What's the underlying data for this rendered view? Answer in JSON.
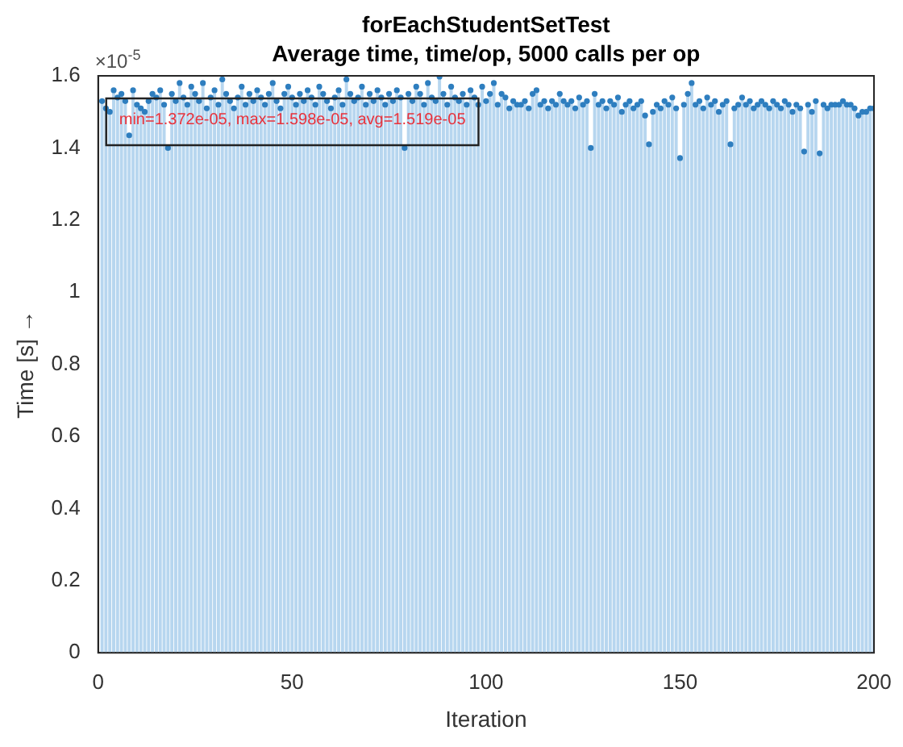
{
  "chart_data": {
    "type": "bar",
    "title": "forEachStudentSetTest",
    "subtitle": "Average time, time/op, 5000 calls per op",
    "xlabel": "Iteration",
    "ylabel": "Time [s] →",
    "annotations": [
      "×10$^{-5}$",
      "min=1.372e-05, max=1.598e-05, avg=1.519e-05"
    ],
    "x": [
      1,
      2,
      3,
      4,
      5,
      6,
      7,
      8,
      9,
      10,
      11,
      12,
      13,
      14,
      15,
      16,
      17,
      18,
      19,
      20,
      21,
      22,
      23,
      24,
      25,
      26,
      27,
      28,
      29,
      30,
      31,
      32,
      33,
      34,
      35,
      36,
      37,
      38,
      39,
      40,
      41,
      42,
      43,
      44,
      45,
      46,
      47,
      48,
      49,
      50,
      51,
      52,
      53,
      54,
      55,
      56,
      57,
      58,
      59,
      60,
      61,
      62,
      63,
      64,
      65,
      66,
      67,
      68,
      69,
      70,
      71,
      72,
      73,
      74,
      75,
      76,
      77,
      78,
      79,
      80,
      81,
      82,
      83,
      84,
      85,
      86,
      87,
      88,
      89,
      90,
      91,
      92,
      93,
      94,
      95,
      96,
      97,
      98,
      99,
      100,
      101,
      102,
      103,
      104,
      105,
      106,
      107,
      108,
      109,
      110,
      111,
      112,
      113,
      114,
      115,
      116,
      117,
      118,
      119,
      120,
      121,
      122,
      123,
      124,
      125,
      126,
      127,
      128,
      129,
      130,
      131,
      132,
      133,
      134,
      135,
      136,
      137,
      138,
      139,
      140,
      141,
      142,
      143,
      144,
      145,
      146,
      147,
      148,
      149,
      150,
      151,
      152,
      153,
      154,
      155,
      156,
      157,
      158,
      159,
      160,
      161,
      162,
      163,
      164,
      165,
      166,
      167,
      168,
      169,
      170,
      171,
      172,
      173,
      174,
      175,
      176,
      177,
      178,
      179,
      180,
      181,
      182,
      183,
      184,
      185,
      186,
      187,
      188,
      189,
      190,
      191,
      192,
      193,
      194,
      195,
      196,
      197,
      198,
      199,
      200
    ],
    "series": [
      {
        "color": "#b7d6ef",
        "values": [
          1.53,
          1.51,
          1.5,
          1.56,
          1.54,
          1.55,
          1.53,
          1.435,
          1.56,
          1.52,
          1.51,
          1.5,
          1.53,
          1.55,
          1.54,
          1.56,
          1.52,
          1.4,
          1.55,
          1.53,
          1.58,
          1.54,
          1.52,
          1.57,
          1.55,
          1.53,
          1.58,
          1.51,
          1.54,
          1.56,
          1.52,
          1.59,
          1.55,
          1.53,
          1.51,
          1.54,
          1.57,
          1.52,
          1.55,
          1.53,
          1.56,
          1.54,
          1.52,
          1.55,
          1.58,
          1.53,
          1.51,
          1.55,
          1.57,
          1.54,
          1.52,
          1.55,
          1.53,
          1.56,
          1.54,
          1.52,
          1.57,
          1.55,
          1.53,
          1.51,
          1.54,
          1.56,
          1.52,
          1.59,
          1.55,
          1.53,
          1.54,
          1.57,
          1.52,
          1.55,
          1.53,
          1.56,
          1.54,
          1.52,
          1.55,
          1.53,
          1.56,
          1.54,
          1.4,
          1.55,
          1.53,
          1.57,
          1.55,
          1.52,
          1.58,
          1.54,
          1.53,
          1.598,
          1.55,
          1.52,
          1.57,
          1.54,
          1.53,
          1.55,
          1.52,
          1.56,
          1.54,
          1.52,
          1.57,
          1.53,
          1.55,
          1.58,
          1.52,
          1.55,
          1.54,
          1.51,
          1.53,
          1.52,
          1.52,
          1.53,
          1.51,
          1.55,
          1.56,
          1.52,
          1.53,
          1.51,
          1.53,
          1.52,
          1.55,
          1.53,
          1.52,
          1.53,
          1.51,
          1.54,
          1.52,
          1.53,
          1.4,
          1.55,
          1.52,
          1.53,
          1.51,
          1.53,
          1.52,
          1.54,
          1.5,
          1.52,
          1.53,
          1.51,
          1.52,
          1.53,
          1.49,
          1.41,
          1.5,
          1.52,
          1.51,
          1.53,
          1.52,
          1.54,
          1.51,
          1.372,
          1.52,
          1.55,
          1.58,
          1.52,
          1.53,
          1.51,
          1.54,
          1.52,
          1.53,
          1.5,
          1.52,
          1.53,
          1.41,
          1.51,
          1.52,
          1.54,
          1.52,
          1.53,
          1.51,
          1.52,
          1.53,
          1.52,
          1.51,
          1.53,
          1.52,
          1.51,
          1.53,
          1.52,
          1.5,
          1.52,
          1.51,
          1.39,
          1.52,
          1.5,
          1.53,
          1.385,
          1.52,
          1.51,
          1.52,
          1.52,
          1.52,
          1.53,
          1.52,
          1.52,
          1.51,
          1.49,
          1.5,
          1.5,
          1.51,
          1.51
        ]
      },
      {
        "type": "scatter",
        "color": "#2e7ebf",
        "marker": "circle",
        "values": [
          1.53,
          1.51,
          1.5,
          1.56,
          1.54,
          1.55,
          1.53,
          1.435,
          1.56,
          1.52,
          1.51,
          1.5,
          1.53,
          1.55,
          1.54,
          1.56,
          1.52,
          1.4,
          1.55,
          1.53,
          1.58,
          1.54,
          1.52,
          1.57,
          1.55,
          1.53,
          1.58,
          1.51,
          1.54,
          1.56,
          1.52,
          1.59,
          1.55,
          1.53,
          1.51,
          1.54,
          1.57,
          1.52,
          1.55,
          1.53,
          1.56,
          1.54,
          1.52,
          1.55,
          1.58,
          1.53,
          1.51,
          1.55,
          1.57,
          1.54,
          1.52,
          1.55,
          1.53,
          1.56,
          1.54,
          1.52,
          1.57,
          1.55,
          1.53,
          1.51,
          1.54,
          1.56,
          1.52,
          1.59,
          1.55,
          1.53,
          1.54,
          1.57,
          1.52,
          1.55,
          1.53,
          1.56,
          1.54,
          1.52,
          1.55,
          1.53,
          1.56,
          1.54,
          1.4,
          1.55,
          1.53,
          1.57,
          1.55,
          1.52,
          1.58,
          1.54,
          1.53,
          1.598,
          1.55,
          1.52,
          1.57,
          1.54,
          1.53,
          1.55,
          1.52,
          1.56,
          1.54,
          1.52,
          1.57,
          1.53,
          1.55,
          1.58,
          1.52,
          1.55,
          1.54,
          1.51,
          1.53,
          1.52,
          1.52,
          1.53,
          1.51,
          1.55,
          1.56,
          1.52,
          1.53,
          1.51,
          1.53,
          1.52,
          1.55,
          1.53,
          1.52,
          1.53,
          1.51,
          1.54,
          1.52,
          1.53,
          1.4,
          1.55,
          1.52,
          1.53,
          1.51,
          1.53,
          1.52,
          1.54,
          1.5,
          1.52,
          1.53,
          1.51,
          1.52,
          1.53,
          1.49,
          1.41,
          1.5,
          1.52,
          1.51,
          1.53,
          1.52,
          1.54,
          1.51,
          1.372,
          1.52,
          1.55,
          1.58,
          1.52,
          1.53,
          1.51,
          1.54,
          1.52,
          1.53,
          1.5,
          1.52,
          1.53,
          1.41,
          1.51,
          1.52,
          1.54,
          1.52,
          1.53,
          1.51,
          1.52,
          1.53,
          1.52,
          1.51,
          1.53,
          1.52,
          1.51,
          1.53,
          1.52,
          1.5,
          1.52,
          1.51,
          1.39,
          1.52,
          1.5,
          1.53,
          1.385,
          1.52,
          1.51,
          1.52,
          1.52,
          1.52,
          1.53,
          1.52,
          1.52,
          1.51,
          1.49,
          1.5,
          1.5,
          1.51,
          1.51
        ]
      }
    ],
    "xlim": [
      0,
      200
    ],
    "xticks": [
      0,
      50,
      100,
      150,
      200
    ],
    "ylim": [
      0,
      1.6
    ],
    "yticks": [
      0,
      0.2,
      0.4,
      0.6,
      0.8,
      1,
      1.2,
      1.4,
      1.6
    ],
    "grid": false,
    "legend": false
  }
}
